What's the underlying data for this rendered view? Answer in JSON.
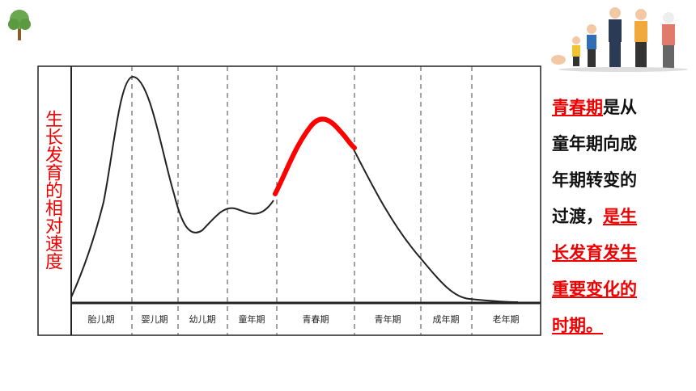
{
  "y_axis_label": "生长发育的相对速度",
  "stages": [
    "胎儿期",
    "婴儿期",
    "幼儿期",
    "童年期",
    "青春期",
    "青年期",
    "成年期",
    "老年期"
  ],
  "description": [
    [
      {
        "text": "青春期",
        "emphasis": true
      },
      {
        "text": "是从",
        "emphasis": false
      }
    ],
    [
      {
        "text": "童年期向成",
        "emphasis": false
      }
    ],
    [
      {
        "text": "年期转变的",
        "emphasis": false
      }
    ],
    [
      {
        "text": "过渡，",
        "emphasis": false
      },
      {
        "text": "是生",
        "emphasis": true
      }
    ],
    [
      {
        "text": "长发育发生",
        "emphasis": true
      }
    ],
    [
      {
        "text": "重要变化的",
        "emphasis": true
      }
    ],
    [
      {
        "text": "时期。",
        "emphasis": true
      }
    ]
  ]
}
